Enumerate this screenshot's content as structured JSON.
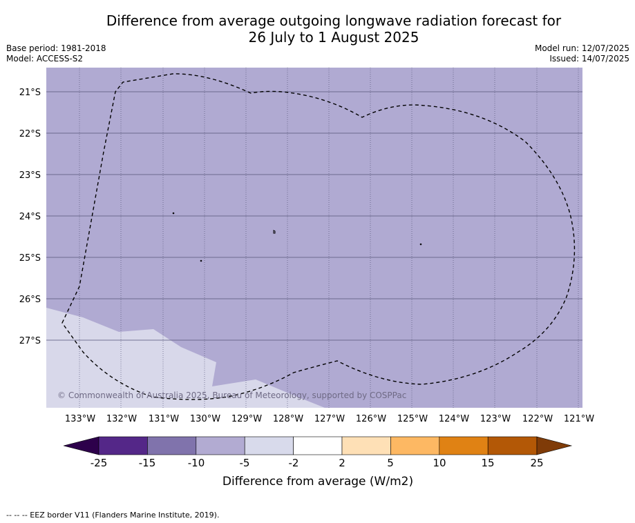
{
  "title": {
    "line1": "Difference from average outgoing longwave radiation forecast for",
    "line2": "26 July to 1 August 2025"
  },
  "meta": {
    "base_period": "Base period: 1981-2018",
    "model": "Model: ACCESS-S2",
    "model_run": "Model run: 12/07/2025",
    "issued": "Issued: 14/07/2025"
  },
  "map": {
    "region": "South Pacific, 133°W–121°W, 21°S–28°S",
    "lon_ticks": [
      "133°W",
      "132°W",
      "131°W",
      "130°W",
      "129°W",
      "128°W",
      "127°W",
      "126°W",
      "125°W",
      "124°W",
      "123°W",
      "122°W",
      "121°W"
    ],
    "lat_ticks": [
      "21°S",
      "22°S",
      "23°S",
      "24°S",
      "25°S",
      "26°S",
      "27°S"
    ],
    "copyright": "© Commonwealth of Australia 2025, Bureau of Meteorology, supported by COSPPac",
    "colors": {
      "main_anomaly": "#b0aad2",
      "lighter_anomaly": "#d8d8ea",
      "gridline": "#555577",
      "eez_border": "#000000"
    }
  },
  "colorbar": {
    "ticks": [
      "-25",
      "-15",
      "-10",
      "-5",
      "-2",
      "2",
      "5",
      "10",
      "15",
      "25"
    ],
    "colors": [
      "#2d004b",
      "#542788",
      "#8073ac",
      "#b2abd2",
      "#d8daeb",
      "#ffffff",
      "#fee0b6",
      "#fdb863",
      "#e08214",
      "#b35806",
      "#7f3b08"
    ],
    "label": "Difference from average (W/m2)"
  },
  "footnote": "--  --  -- EEZ border V11 (Flanders Marine Institute, 2019)."
}
